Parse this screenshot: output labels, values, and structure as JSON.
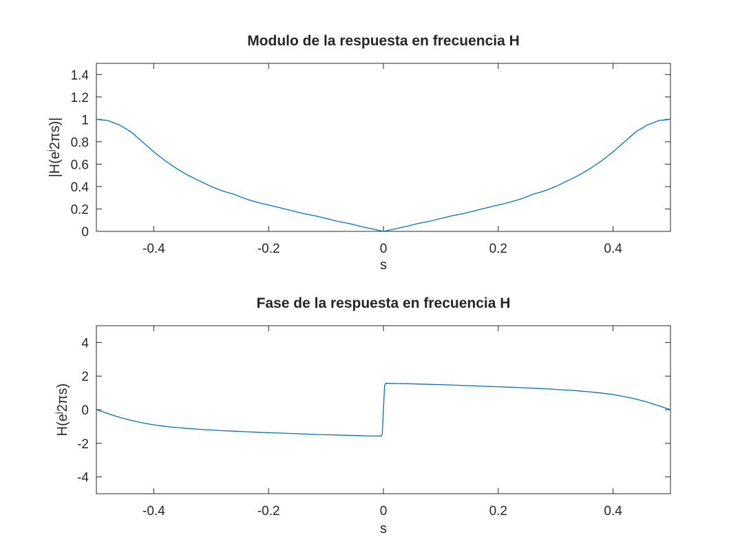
{
  "chart_data": [
    {
      "type": "line",
      "title": "Modulo de la respuesta en frecuencia H",
      "xlabel": "s",
      "ylabel": {
        "pre": "|H(e",
        "sup": "j",
        "post": "2πs)|"
      },
      "xlim": [
        -0.5,
        0.5
      ],
      "ylim": [
        0,
        1.5
      ],
      "xticks": [
        -0.4,
        -0.2,
        0,
        0.2,
        0.4
      ],
      "xtick_labels": [
        "-0.4",
        "-0.2",
        "0",
        "0.2",
        "0.4"
      ],
      "yticks": [
        0,
        0.2,
        0.4,
        0.6,
        0.8,
        1,
        1.2,
        1.4
      ],
      "ytick_labels": [
        "0",
        "0.2",
        "0.4",
        "0.6",
        "0.8",
        "1",
        "1.2",
        "1.4"
      ],
      "grid": false,
      "series": [
        {
          "color": "#0072bd",
          "x": [
            -0.5,
            -0.48,
            -0.46,
            -0.44,
            -0.42,
            -0.4,
            -0.38,
            -0.36,
            -0.34,
            -0.32,
            -0.3,
            -0.28,
            -0.26,
            -0.24,
            -0.22,
            -0.2,
            -0.18,
            -0.16,
            -0.14,
            -0.12,
            -0.1,
            -0.08,
            -0.06,
            -0.04,
            -0.02,
            0,
            0.02,
            0.04,
            0.06,
            0.08,
            0.1,
            0.12,
            0.14,
            0.16,
            0.18,
            0.2,
            0.22,
            0.24,
            0.26,
            0.28,
            0.3,
            0.32,
            0.34,
            0.36,
            0.38,
            0.4,
            0.42,
            0.44,
            0.46,
            0.48,
            0.5
          ],
          "y": [
            1.0,
            0.99,
            0.95,
            0.89,
            0.8,
            0.71,
            0.63,
            0.56,
            0.5,
            0.45,
            0.4,
            0.36,
            0.33,
            0.29,
            0.26,
            0.235,
            0.21,
            0.185,
            0.16,
            0.14,
            0.115,
            0.09,
            0.07,
            0.045,
            0.022,
            0.0,
            0.022,
            0.045,
            0.07,
            0.09,
            0.115,
            0.14,
            0.16,
            0.185,
            0.21,
            0.235,
            0.26,
            0.29,
            0.33,
            0.36,
            0.4,
            0.45,
            0.5,
            0.56,
            0.63,
            0.71,
            0.8,
            0.89,
            0.95,
            0.99,
            1.0
          ]
        }
      ]
    },
    {
      "type": "line",
      "title": "Fase de la respuesta en frecuencia H",
      "xlabel": "s",
      "ylabel": {
        "pre": "H(e",
        "sup": "j",
        "post": "2πs)"
      },
      "xlim": [
        -0.5,
        0.5
      ],
      "ylim": [
        -5,
        5
      ],
      "xticks": [
        -0.4,
        -0.2,
        0,
        0.2,
        0.4
      ],
      "xtick_labels": [
        "-0.4",
        "-0.2",
        "0",
        "0.2",
        "0.4"
      ],
      "yticks": [
        -4,
        -2,
        0,
        2,
        4
      ],
      "ytick_labels": [
        "-4",
        "-2",
        "0",
        "2",
        "4"
      ],
      "grid": false,
      "series": [
        {
          "color": "#0072bd",
          "x": [
            -0.5,
            -0.48,
            -0.46,
            -0.44,
            -0.42,
            -0.4,
            -0.38,
            -0.36,
            -0.34,
            -0.32,
            -0.3,
            -0.28,
            -0.26,
            -0.24,
            -0.22,
            -0.2,
            -0.18,
            -0.16,
            -0.14,
            -0.12,
            -0.1,
            -0.08,
            -0.06,
            -0.04,
            -0.02,
            -0.004,
            -0.002,
            0.0,
            0.002,
            0.004,
            0.02,
            0.04,
            0.06,
            0.08,
            0.1,
            0.12,
            0.14,
            0.16,
            0.18,
            0.2,
            0.22,
            0.24,
            0.26,
            0.28,
            0.3,
            0.32,
            0.34,
            0.36,
            0.38,
            0.4,
            0.42,
            0.44,
            0.46,
            0.48,
            0.5
          ],
          "y": [
            0.0,
            -0.23,
            -0.45,
            -0.63,
            -0.78,
            -0.9,
            -0.99,
            -1.06,
            -1.12,
            -1.17,
            -1.21,
            -1.25,
            -1.28,
            -1.31,
            -1.34,
            -1.37,
            -1.39,
            -1.42,
            -1.44,
            -1.47,
            -1.49,
            -1.51,
            -1.53,
            -1.55,
            -1.56,
            -1.57,
            -1.45,
            0.0,
            1.45,
            1.57,
            1.56,
            1.55,
            1.53,
            1.51,
            1.49,
            1.47,
            1.44,
            1.42,
            1.39,
            1.37,
            1.34,
            1.31,
            1.28,
            1.25,
            1.21,
            1.17,
            1.12,
            1.06,
            0.99,
            0.9,
            0.78,
            0.63,
            0.45,
            0.23,
            0.0
          ]
        }
      ]
    }
  ]
}
